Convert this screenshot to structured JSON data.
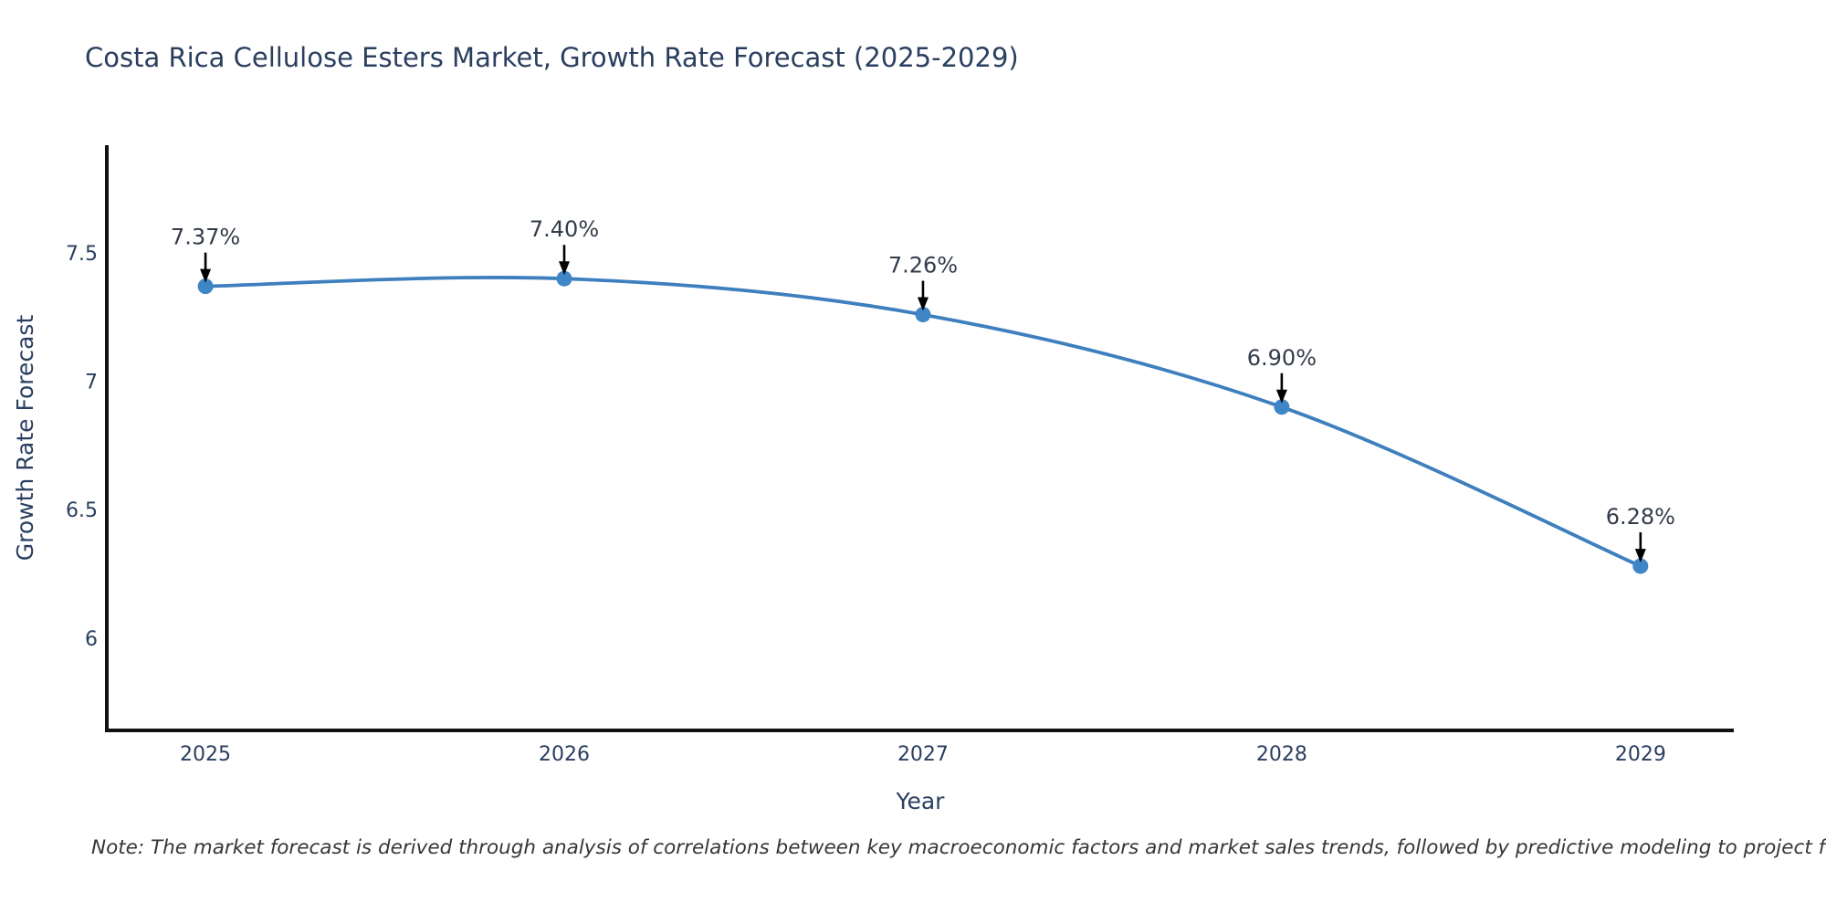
{
  "note": "Note: The market forecast is derived through analysis of correlations between key macroeconomic factors and market sales trends, followed by predictive modeling to project future sales",
  "chart_data": {
    "type": "line",
    "title": "Costa Rica Cellulose Esters Market, Growth Rate Forecast (2025-2029)",
    "xlabel": "Year",
    "ylabel": "Growth Rate Forecast",
    "x": [
      2025,
      2026,
      2027,
      2028,
      2029
    ],
    "x_tick_labels": [
      "2025",
      "2026",
      "2027",
      "2028",
      "2029"
    ],
    "series": [
      {
        "name": "Growth Rate Forecast",
        "values": [
          7.37,
          7.4,
          7.26,
          6.9,
          6.28
        ],
        "point_labels": [
          "7.37%",
          "7.40%",
          "7.26%",
          "6.90%",
          "6.28%"
        ]
      }
    ],
    "y_ticks": {
      "values": [
        6,
        6.5,
        7,
        7.5
      ],
      "labels": [
        "6",
        "6.5",
        "7",
        "7.5"
      ]
    },
    "ylim": [
      5.64,
      7.92
    ],
    "xlim": [
      2024.725,
      2029.26
    ],
    "grid": false,
    "legend_position": "none",
    "line_shape": "spline",
    "annotation_style": "black-down-arrow",
    "colors": {
      "line": "#3e7fbe",
      "marker": "#3f86c7",
      "axis_line": "#111111",
      "text": "#2a3f5f",
      "annotation_arrow": "#000000",
      "note_text": "#363636",
      "background": "#ffffff"
    }
  }
}
